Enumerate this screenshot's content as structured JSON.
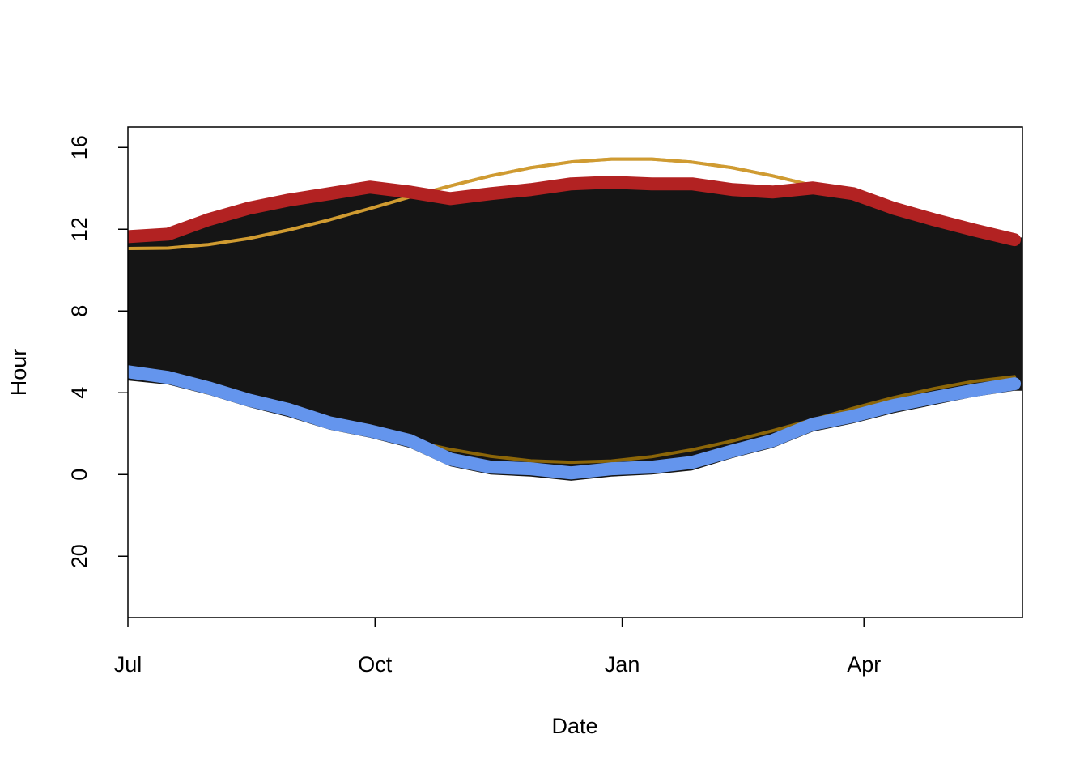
{
  "chart_data": {
    "type": "line",
    "xlabel": "Date",
    "ylabel": "Hour",
    "xlim": [
      0,
      333
    ],
    "xticks": [
      {
        "value": 0,
        "label": "Jul"
      },
      {
        "value": 92,
        "label": "Oct"
      },
      {
        "value": 184,
        "label": "Jan"
      },
      {
        "value": 274,
        "label": "Apr"
      }
    ],
    "ylim": [
      -7,
      17
    ],
    "yticks": [
      {
        "value": -4,
        "label": "20"
      },
      0,
      4,
      8,
      12,
      16
    ],
    "x": [
      0,
      15,
      30,
      45,
      60,
      75,
      90,
      105,
      120,
      135,
      150,
      165,
      180,
      195,
      210,
      225,
      240,
      255,
      270,
      285,
      300,
      315,
      330
    ],
    "band": {
      "color": "#151515",
      "upper": [
        11.8,
        11.9,
        12.6,
        13.2,
        13.6,
        13.9,
        14.2,
        14.0,
        13.7,
        13.9,
        14.1,
        14.4,
        14.5,
        14.4,
        14.4,
        14.1,
        14.0,
        14.2,
        13.9,
        13.2,
        12.6,
        12.1,
        11.6
      ],
      "lower": [
        4.6,
        4.4,
        3.9,
        3.3,
        2.8,
        2.2,
        1.8,
        1.3,
        0.4,
        0.0,
        -0.1,
        -0.3,
        -0.1,
        0.0,
        0.2,
        0.8,
        1.3,
        2.1,
        2.5,
        3.0,
        3.4,
        3.8,
        4.1
      ]
    },
    "series": [
      {
        "color": "#8b6508",
        "width": 4,
        "opacity": 1,
        "values": [
          4.81,
          4.58,
          4.23,
          3.79,
          3.27,
          2.72,
          2.17,
          1.66,
          1.23,
          0.89,
          0.67,
          0.6,
          0.66,
          0.87,
          1.21,
          1.64,
          2.14,
          2.68,
          3.24,
          3.76,
          4.2,
          4.56,
          4.79
        ]
      },
      {
        "color": "#8b6508",
        "width": 4,
        "opacity": 1,
        "values": [
          11.06,
          11.08,
          11.25,
          11.55,
          11.97,
          12.46,
          13.01,
          13.58,
          14.12,
          14.61,
          15.01,
          15.29,
          15.43,
          15.43,
          15.28,
          15.01,
          14.61,
          14.14,
          13.58,
          13.01,
          12.46,
          11.97,
          11.55
        ]
      },
      {
        "color": "#ffc04c",
        "width": 4,
        "opacity": 0.6,
        "values": [
          11.06,
          11.08,
          11.25,
          11.55,
          11.97,
          12.46,
          13.01,
          13.58,
          14.12,
          14.61,
          15.01,
          15.29,
          15.43,
          15.43,
          15.28,
          15.01,
          14.61,
          14.14,
          13.58,
          13.01,
          12.46,
          11.97,
          11.55
        ]
      },
      {
        "color": "#b22222",
        "width": 16,
        "opacity": 1,
        "values": [
          11.64,
          11.76,
          12.47,
          13.03,
          13.43,
          13.74,
          14.06,
          13.82,
          13.5,
          13.74,
          13.94,
          14.22,
          14.3,
          14.22,
          14.22,
          13.94,
          13.82,
          14.02,
          13.74,
          13.03,
          12.47,
          11.96,
          11.49
        ]
      },
      {
        "color": "#6495ed",
        "width": 16,
        "opacity": 1,
        "values": [
          5.03,
          4.75,
          4.24,
          3.64,
          3.17,
          2.53,
          2.14,
          1.66,
          0.75,
          0.36,
          0.28,
          0.08,
          0.28,
          0.36,
          0.59,
          1.15,
          1.66,
          2.46,
          2.85,
          3.37,
          3.76,
          4.12,
          4.44
        ]
      }
    ]
  }
}
